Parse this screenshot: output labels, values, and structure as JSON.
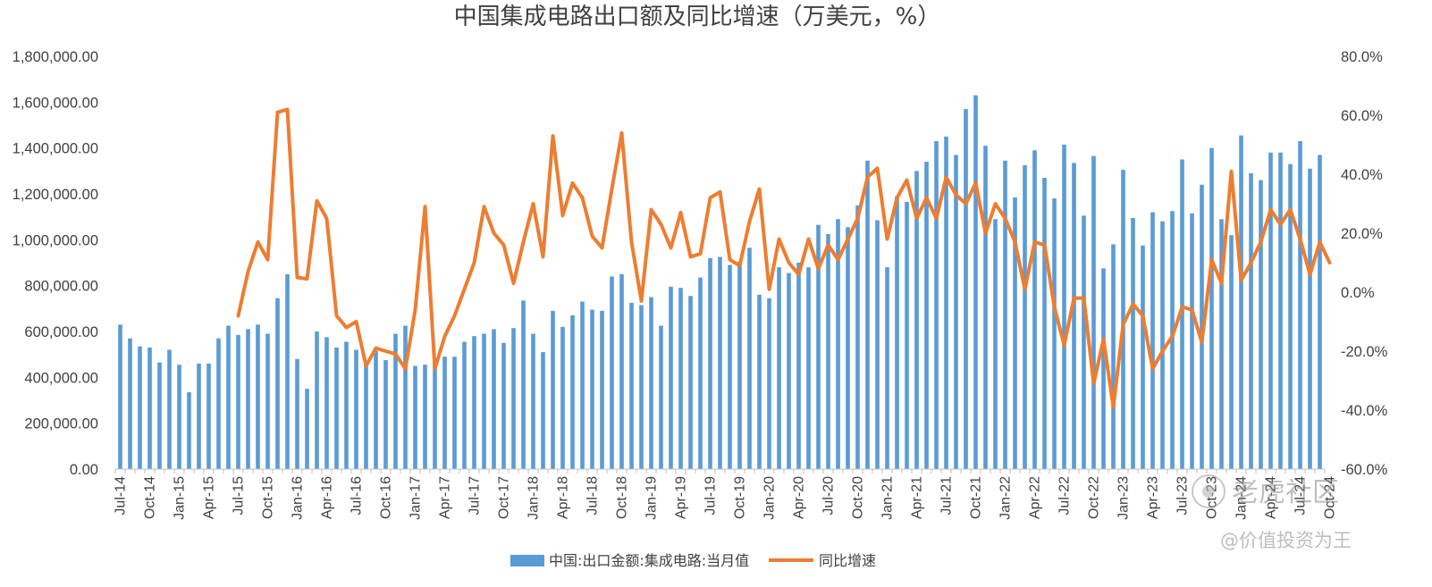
{
  "chart_data": {
    "type": "bar+line",
    "title": "中国集成电路出口额及同比增速（万美元，%）",
    "left_axis": {
      "min": 0,
      "max": 1800000,
      "step": 200000,
      "ticks": [
        "0.00",
        "200,000.00",
        "400,000.00",
        "600,000.00",
        "800,000.00",
        "1,000,000.00",
        "1,200,000.00",
        "1,400,000.00",
        "1,600,000.00",
        "1,800,000.00"
      ]
    },
    "right_axis": {
      "min": -60,
      "max": 80,
      "step": 20,
      "ticks": [
        "-60.0%",
        "-40.0%",
        "-20.0%",
        "0.0%",
        "20.0%",
        "40.0%",
        "60.0%",
        "80.0%"
      ]
    },
    "x_tick_labels": [
      "Jul-14",
      "Oct-14",
      "Jan-15",
      "Apr-15",
      "Jul-15",
      "Oct-15",
      "Jan-16",
      "Apr-16",
      "Jul-16",
      "Oct-16",
      "Jan-17",
      "Apr-17",
      "Jul-17",
      "Oct-17",
      "Jan-18",
      "Apr-18",
      "Jul-18",
      "Oct-18",
      "Jan-19",
      "Apr-19",
      "Jul-19",
      "Oct-19",
      "Jan-20",
      "Apr-20",
      "Jul-20",
      "Oct-20",
      "Jan-21",
      "Apr-21",
      "Jul-21",
      "Oct-21",
      "Jan-22",
      "Apr-22",
      "Jul-22",
      "Oct-22",
      "Jan-23",
      "Apr-23",
      "Jul-23",
      "Oct-23",
      "Jan-24",
      "Apr-24",
      "Jul-24",
      "Oct-24"
    ],
    "series": [
      {
        "name": "中国:出口金额:集成电路:当月值",
        "type": "bar",
        "axis": "left",
        "color": "#5b9bd5",
        "values": [
          630000,
          570000,
          535000,
          530000,
          465000,
          520000,
          455000,
          335000,
          460000,
          460000,
          570000,
          625000,
          585000,
          610000,
          630000,
          590000,
          745000,
          850000,
          480000,
          350000,
          600000,
          575000,
          530000,
          555000,
          520000,
          465000,
          515000,
          475000,
          590000,
          625000,
          450000,
          455000,
          465000,
          490000,
          490000,
          555000,
          580000,
          590000,
          610000,
          550000,
          615000,
          735000,
          590000,
          510000,
          690000,
          620000,
          670000,
          730000,
          695000,
          690000,
          840000,
          850000,
          725000,
          715000,
          750000,
          625000,
          795000,
          790000,
          755000,
          835000,
          920000,
          925000,
          890000,
          905000,
          965000,
          760000,
          745000,
          880000,
          855000,
          900000,
          880000,
          1065000,
          1025000,
          1090000,
          1055000,
          1150000,
          1345000,
          1085000,
          880000,
          1190000,
          1165000,
          1300000,
          1340000,
          1430000,
          1450000,
          1370000,
          1570000,
          1630000,
          1410000,
          1090000,
          1345000,
          1185000,
          1325000,
          1390000,
          1270000,
          1180000,
          1415000,
          1335000,
          1105000,
          1365000,
          875000,
          980000,
          1305000,
          1095000,
          975000,
          1120000,
          1080000,
          1125000,
          1350000,
          1115000,
          1240000,
          1400000,
          1090000,
          1020000,
          1455000,
          1290000,
          1260000,
          1380000,
          1380000,
          1330000,
          1430000,
          1310000,
          1370000
        ]
      },
      {
        "name": "同比增速",
        "type": "line",
        "axis": "right",
        "color": "#ed7d31",
        "start_index": 12,
        "values": [
          -8,
          7,
          17,
          11,
          61,
          62,
          5,
          4.5,
          31,
          25,
          -8,
          -12,
          -10,
          -25,
          -19,
          -20,
          -21,
          -26,
          -6,
          29,
          -26,
          -15,
          -8,
          1,
          10,
          29,
          20,
          16,
          3,
          17,
          30,
          12,
          53,
          26,
          37,
          32,
          19,
          15,
          35,
          54,
          17,
          -3,
          28,
          23,
          15,
          27,
          12,
          13,
          32,
          34,
          11,
          9,
          24,
          35,
          1,
          18,
          10,
          6,
          18,
          8,
          16,
          11,
          18,
          25,
          39,
          42,
          18,
          32,
          38,
          25,
          32,
          25,
          39,
          33,
          30,
          37,
          20,
          30,
          25,
          17,
          1,
          17,
          16,
          -5,
          -18,
          -2,
          -2,
          -31,
          -16,
          -39,
          -11,
          -4,
          -8,
          -26,
          -20,
          -15,
          -5,
          -6,
          -17,
          11,
          3,
          41,
          4,
          10,
          17,
          28,
          23,
          28,
          18,
          6,
          17,
          10
        ]
      }
    ],
    "legend_position": "bottom-center",
    "grid": false
  },
  "watermark": {
    "logo_text": "老虎社区",
    "account": "@价值投资为王"
  }
}
